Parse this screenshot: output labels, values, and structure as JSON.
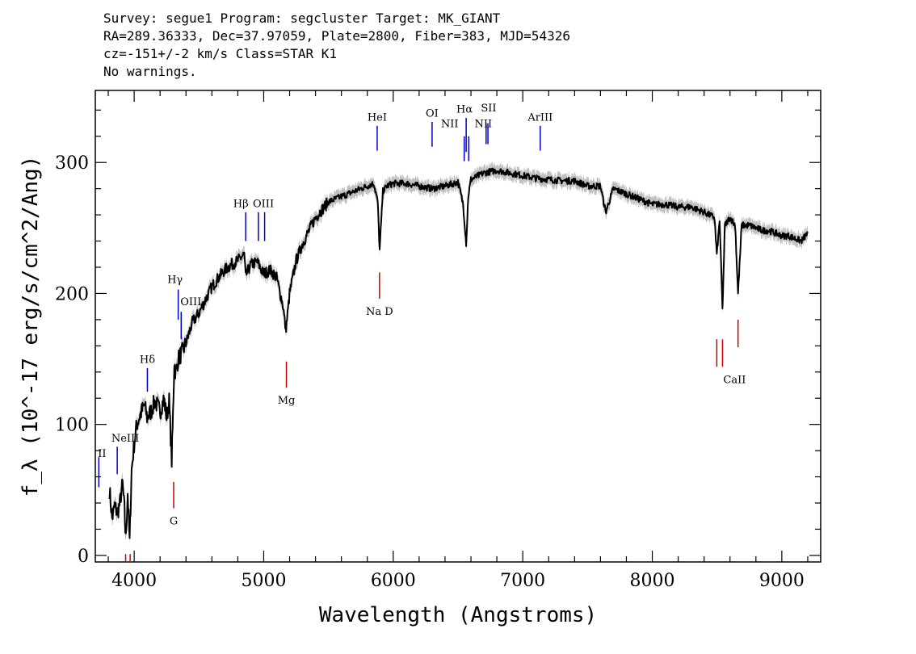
{
  "header": {
    "line1": "Survey: segue1 Program: segcluster Target: MK_GIANT",
    "line2": "RA=289.36333, Dec=37.97059, Plate=2800, Fiber=383, MJD=54326",
    "line3": "cz=-151+/-2 km/s Class=STAR K1",
    "line4": "No warnings."
  },
  "chart_data": {
    "type": "line",
    "xlabel": "Wavelength (Angstroms)",
    "ylabel": "f_λ (10^-17 erg/s/cm^2/Ang)",
    "xlim": [
      3700,
      9300
    ],
    "ylim": [
      -5,
      355
    ],
    "x_ticks": [
      4000,
      5000,
      6000,
      7000,
      8000,
      9000
    ],
    "y_ticks": [
      0,
      100,
      200,
      300
    ],
    "series": [
      {
        "x": [
          3810,
          3830,
          3850,
          3870,
          3890,
          3910,
          3925,
          3935,
          3950,
          3965,
          3980,
          4000,
          4020,
          4050,
          4080,
          4100,
          4130,
          4160,
          4200,
          4230,
          4250,
          4270,
          4290,
          4300,
          4310,
          4320,
          4340,
          4370,
          4400,
          4450,
          4500,
          4550,
          4600,
          4650,
          4700,
          4750,
          4800,
          4850,
          4860,
          4900,
          4950,
          5000,
          5050,
          5100,
          5150,
          5170,
          5180,
          5200,
          5250,
          5300,
          5350,
          5400,
          5450,
          5500,
          5600,
          5700,
          5800,
          5850,
          5880,
          5895,
          5920,
          5950,
          6000,
          6100,
          6200,
          6300,
          6400,
          6500,
          6540,
          6563,
          6580,
          6600,
          6700,
          6800,
          6900,
          7000,
          7100,
          7200,
          7300,
          7400,
          7500,
          7600,
          7640,
          7700,
          7800,
          7900,
          8000,
          8100,
          8200,
          8300,
          8400,
          8480,
          8498,
          8520,
          8542,
          8560,
          8600,
          8640,
          8662,
          8690,
          8750,
          8800,
          8850,
          8900,
          8950,
          9000,
          9050,
          9100,
          9150,
          9200
        ],
        "values": [
          50,
          28,
          38,
          32,
          40,
          55,
          35,
          12,
          48,
          10,
          65,
          85,
          100,
          108,
          115,
          105,
          110,
          118,
          110,
          120,
          105,
          118,
          72,
          108,
          148,
          138,
          150,
          155,
          162,
          178,
          185,
          195,
          205,
          212,
          218,
          222,
          225,
          230,
          213,
          222,
          224,
          215,
          218,
          212,
          190,
          172,
          180,
          200,
          225,
          238,
          248,
          258,
          264,
          270,
          274,
          278,
          282,
          284,
          270,
          233,
          278,
          282,
          284,
          284,
          282,
          280,
          282,
          285,
          268,
          238,
          275,
          287,
          292,
          294,
          292,
          290,
          288,
          287,
          286,
          286,
          282,
          282,
          262,
          280,
          276,
          272,
          268,
          268,
          266,
          266,
          262,
          258,
          230,
          256,
          187,
          252,
          258,
          252,
          200,
          252,
          252,
          250,
          248,
          248,
          246,
          244,
          244,
          242,
          240,
          246
        ],
        "color": "#000000"
      }
    ],
    "emission_lines": [
      {
        "label": "OII",
        "x": 3727,
        "y_bottom": 52,
        "y_top": 75
      },
      {
        "label": "NeIII",
        "x": 3869,
        "y_bottom": 62,
        "y_top": 83
      },
      {
        "label": "Hδ",
        "x": 4102,
        "y_bottom": 125,
        "y_top": 143
      },
      {
        "label": "Hγ",
        "x": 4340,
        "y_bottom": 180,
        "y_top": 203
      },
      {
        "label": "OIII",
        "x": 4363,
        "y_bottom": 165,
        "y_top": 186
      },
      {
        "label": "Hβ",
        "x": 4861,
        "y_bottom": 240,
        "y_top": 262
      },
      {
        "label": "OIII",
        "x": 4959,
        "y_bottom": 240,
        "y_top": 262
      },
      {
        "label": "OIII",
        "x": 5007,
        "y_bottom": 240,
        "y_top": 262
      },
      {
        "label": "HeI",
        "x": 5876,
        "y_bottom": 309,
        "y_top": 328
      },
      {
        "label": "OI",
        "x": 6300,
        "y_bottom": 312,
        "y_top": 331
      },
      {
        "label": "NII",
        "x": 6548,
        "y_bottom": 301,
        "y_top": 320
      },
      {
        "label": "Hα",
        "x": 6563,
        "y_bottom": 308,
        "y_top": 334
      },
      {
        "label": "NII",
        "x": 6583,
        "y_bottom": 301,
        "y_top": 320
      },
      {
        "label": "SII",
        "x": 6717,
        "y_bottom": 314,
        "y_top": 330
      },
      {
        "label": "SII",
        "x": 6731,
        "y_bottom": 314,
        "y_top": 330
      },
      {
        "label": "ArIII",
        "x": 7135,
        "y_bottom": 309,
        "y_top": 328
      }
    ],
    "absorption_lines": [
      {
        "label": "",
        "x": 3934,
        "y_bottom": -5,
        "y_top": 1
      },
      {
        "label": "",
        "x": 3969,
        "y_bottom": -5,
        "y_top": 1
      },
      {
        "label": "G",
        "x": 4305,
        "y_bottom": 36,
        "y_top": 56
      },
      {
        "label": "Mg",
        "x": 5175,
        "y_bottom": 128,
        "y_top": 148
      },
      {
        "label": "Na D",
        "x": 5894,
        "y_bottom": 196,
        "y_top": 216
      },
      {
        "label": "CaII",
        "x": 8498,
        "y_bottom": 144,
        "y_top": 165
      },
      {
        "label": "",
        "x": 8542,
        "y_bottom": 144,
        "y_top": 165
      },
      {
        "label": "",
        "x": 8662,
        "y_bottom": 159,
        "y_top": 180
      }
    ],
    "colors": {
      "spectrum": "#000000",
      "error_band": "#b0b0b0",
      "emission": "#0000cc",
      "absorption": "#cc0000"
    }
  }
}
